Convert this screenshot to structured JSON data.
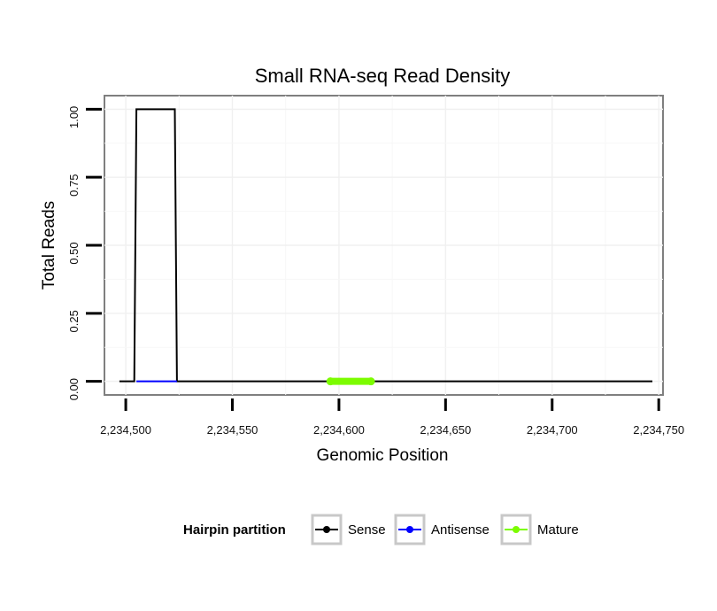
{
  "chart_data": {
    "type": "line",
    "title": "Small RNA-seq Read Density",
    "xlabel": "Genomic Position",
    "ylabel": "Total Reads",
    "xlim": [
      2234490,
      2234752
    ],
    "ylim": [
      -0.05,
      1.05
    ],
    "x_ticks": [
      2234500,
      2234550,
      2234600,
      2234650,
      2234700,
      2234750
    ],
    "x_tick_labels": [
      "2,234,500",
      "2,234,550",
      "2,234,600",
      "2,234,650",
      "2,234,700",
      "2,234,750"
    ],
    "y_ticks": [
      0,
      0.25,
      0.5,
      0.75,
      1.0
    ],
    "y_tick_labels": [
      "0.00",
      "0.25",
      "0.50",
      "0.75",
      "1.00"
    ],
    "grid": true,
    "legend": {
      "title": "Hairpin partition",
      "position": "bottom",
      "entries": [
        {
          "label": "Sense",
          "color": "#000000"
        },
        {
          "label": "Antisense",
          "color": "#0000ff"
        },
        {
          "label": "Mature",
          "color": "#7cfc00"
        }
      ]
    },
    "series": [
      {
        "name": "Sense",
        "color": "#000000",
        "points": [
          [
            2234497,
            0
          ],
          [
            2234504,
            0
          ],
          [
            2234505,
            1
          ],
          [
            2234523,
            1
          ],
          [
            2234524,
            0
          ],
          [
            2234747,
            0
          ]
        ]
      },
      {
        "name": "Antisense",
        "color": "#0000ff",
        "points": [
          [
            2234505,
            0
          ],
          [
            2234524,
            0
          ]
        ]
      },
      {
        "name": "Mature",
        "color": "#7cfc00",
        "points": [
          [
            2234596,
            0
          ],
          [
            2234615,
            0
          ]
        ]
      }
    ]
  }
}
